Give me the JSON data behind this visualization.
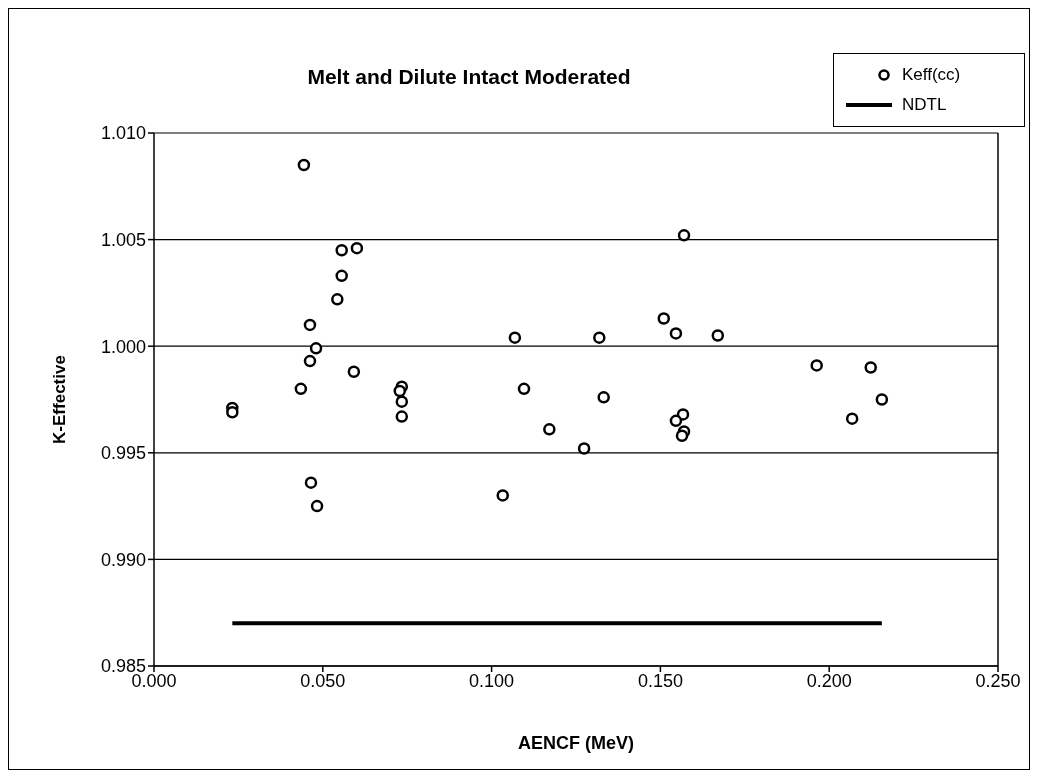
{
  "chart_data": {
    "type": "scatter",
    "title": "Melt and Dilute Intact Moderated",
    "xlabel": "AENCF (MeV)",
    "ylabel": "K-Effective",
    "xlim": [
      0,
      0.25
    ],
    "xticks": [
      {
        "value": 0,
        "label": "0.000"
      },
      {
        "value": 0.05,
        "label": "0.050"
      },
      {
        "value": 0.1,
        "label": "0.100"
      },
      {
        "value": 0.15,
        "label": "0.150"
      },
      {
        "value": 0.2,
        "label": "0.200"
      },
      {
        "value": 0.25,
        "label": "0.250"
      }
    ],
    "ylim": [
      0.985,
      1.01
    ],
    "yticks": [
      {
        "value": 0.985,
        "label": "0.985"
      },
      {
        "value": 0.99,
        "label": "0.990"
      },
      {
        "value": 0.995,
        "label": "0.995"
      },
      {
        "value": 1,
        "label": "1.000"
      },
      {
        "value": 1.005,
        "label": "1.005"
      },
      {
        "value": 1.01,
        "label": "1.010"
      }
    ],
    "grid": "y",
    "legend": "top right",
    "series": [
      {
        "name": "Keff(cc)",
        "marker": "circle",
        "color": "#000000",
        "x": [
          0.0444,
          0.0556,
          0.0601,
          0.0556,
          0.0543,
          0.0462,
          0.048,
          0.0462,
          0.0592,
          0.0435,
          0.0232,
          0.0232,
          0.0734,
          0.0728,
          0.0734,
          0.0734,
          0.0465,
          0.0483,
          0.157,
          0.151,
          0.1546,
          0.167,
          0.1319,
          0.1069,
          0.1096,
          0.1332,
          0.1567,
          0.1546,
          0.157,
          0.1564,
          0.1171,
          0.1274,
          0.1033,
          0.1963,
          0.2123,
          0.2156,
          0.2068
        ],
        "values": [
          1.0085,
          1.0045,
          1.0046,
          1.0033,
          1.0022,
          1.001,
          0.9999,
          0.9993,
          0.9988,
          0.998,
          0.9971,
          0.9969,
          0.9981,
          0.9979,
          0.9974,
          0.9967,
          0.9936,
          0.9925,
          1.0052,
          1.0013,
          1.0006,
          1.0005,
          1.0004,
          1.0004,
          0.998,
          0.9976,
          0.9968,
          0.9965,
          0.996,
          0.9958,
          0.9961,
          0.9952,
          0.993,
          0.9991,
          0.999,
          0.9975,
          0.9966
        ]
      },
      {
        "name": "NDTL",
        "type": "line",
        "marker": "none",
        "color": "#000000",
        "x": [
          0.0232,
          0.2156
        ],
        "values": [
          0.987,
          0.987
        ]
      }
    ]
  }
}
